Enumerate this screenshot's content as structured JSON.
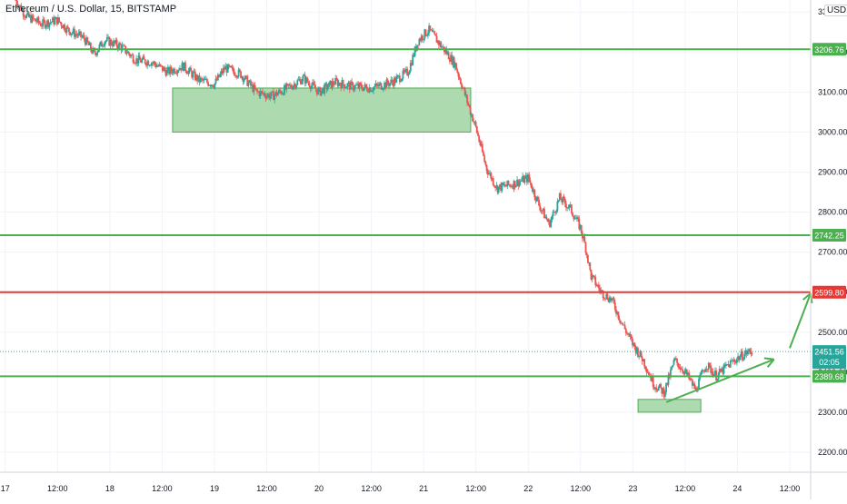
{
  "header": {
    "title": "Ethereum / U.S. Dollar, 15, BITSTAMP",
    "currency": "USD"
  },
  "price_axis": {
    "ticks": [
      "2200.00",
      "2300.00",
      "2400.00",
      "2500.00",
      "2600.00",
      "2700.00",
      "2800.00",
      "2900.00",
      "3000.00",
      "3100.00",
      "3200.00",
      "3300.00"
    ]
  },
  "time_axis": {
    "ticks": [
      "17",
      "12:00",
      "18",
      "12:00",
      "19",
      "12:00",
      "20",
      "12:00",
      "21",
      "12:00",
      "22",
      "12:00",
      "23",
      "12:00",
      "24",
      "12:00"
    ]
  },
  "colors": {
    "up": "#26a69a",
    "down": "#ef5350",
    "support": "#4caf50",
    "resistance": "#e53935",
    "zone_fill": "#a5d6a7",
    "last_price": "#26a69a"
  },
  "chart_data": {
    "type": "candlestick",
    "symbol": "Ethereum / U.S. Dollar",
    "interval": "15",
    "exchange": "BITSTAMP",
    "x_unit": "days since 17 (00:00)",
    "xlim": [
      -0.05,
      7.7
    ],
    "ylim": [
      2150,
      3330
    ],
    "grid": true,
    "price_path": [
      [
        0.1,
        3330
      ],
      [
        0.2,
        3290
      ],
      [
        0.35,
        3270
      ],
      [
        0.5,
        3280
      ],
      [
        0.6,
        3255
      ],
      [
        0.75,
        3235
      ],
      [
        0.85,
        3195
      ],
      [
        0.95,
        3230
      ],
      [
        1.1,
        3215
      ],
      [
        1.25,
        3180
      ],
      [
        1.4,
        3175
      ],
      [
        1.55,
        3150
      ],
      [
        1.7,
        3165
      ],
      [
        1.85,
        3130
      ],
      [
        2.0,
        3120
      ],
      [
        2.1,
        3160
      ],
      [
        2.25,
        3145
      ],
      [
        2.4,
        3100
      ],
      [
        2.55,
        3090
      ],
      [
        2.7,
        3110
      ],
      [
        2.85,
        3135
      ],
      [
        3.0,
        3100
      ],
      [
        3.15,
        3125
      ],
      [
        3.3,
        3115
      ],
      [
        3.5,
        3110
      ],
      [
        3.7,
        3125
      ],
      [
        3.85,
        3150
      ],
      [
        3.95,
        3230
      ],
      [
        4.05,
        3255
      ],
      [
        4.2,
        3205
      ],
      [
        4.3,
        3170
      ],
      [
        4.4,
        3090
      ],
      [
        4.5,
        3010
      ],
      [
        4.6,
        2910
      ],
      [
        4.7,
        2860
      ],
      [
        4.85,
        2870
      ],
      [
        5.0,
        2885
      ],
      [
        5.1,
        2820
      ],
      [
        5.2,
        2770
      ],
      [
        5.3,
        2835
      ],
      [
        5.4,
        2810
      ],
      [
        5.5,
        2760
      ],
      [
        5.55,
        2710
      ],
      [
        5.6,
        2640
      ],
      [
        5.7,
        2600
      ],
      [
        5.8,
        2580
      ],
      [
        5.9,
        2520
      ],
      [
        6.0,
        2470
      ],
      [
        6.1,
        2430
      ],
      [
        6.2,
        2370
      ],
      [
        6.3,
        2350
      ],
      [
        6.4,
        2430
      ],
      [
        6.5,
        2400
      ],
      [
        6.6,
        2355
      ],
      [
        6.7,
        2420
      ],
      [
        6.8,
        2390
      ],
      [
        6.9,
        2415
      ],
      [
        7.0,
        2435
      ],
      [
        7.1,
        2450
      ],
      [
        7.15,
        2451.56
      ]
    ],
    "levels": [
      {
        "price": 3206.76,
        "label": "3206.76",
        "color": "#4caf50"
      },
      {
        "price": 2742.25,
        "label": "2742.25",
        "color": "#4caf50"
      },
      {
        "price": 2599.8,
        "label": "2599.80",
        "color": "#e53935"
      },
      {
        "price": 2389.68,
        "label": "2389.68",
        "color": "#4caf50"
      }
    ],
    "zones": [
      {
        "x0": 1.6,
        "x1": 4.45,
        "y0": 3000,
        "y1": 3110
      },
      {
        "x0": 6.05,
        "x1": 6.65,
        "y0": 2300,
        "y1": 2332
      }
    ],
    "arrows": [
      {
        "x0": 6.32,
        "y0": 2325,
        "x1": 7.35,
        "y1": 2432
      },
      {
        "x0": 7.5,
        "y0": 2460,
        "x1": 7.7,
        "y1": 2597
      }
    ],
    "last_price": {
      "value": 2451.56,
      "label": "2451.56",
      "countdown": "02:05"
    }
  }
}
